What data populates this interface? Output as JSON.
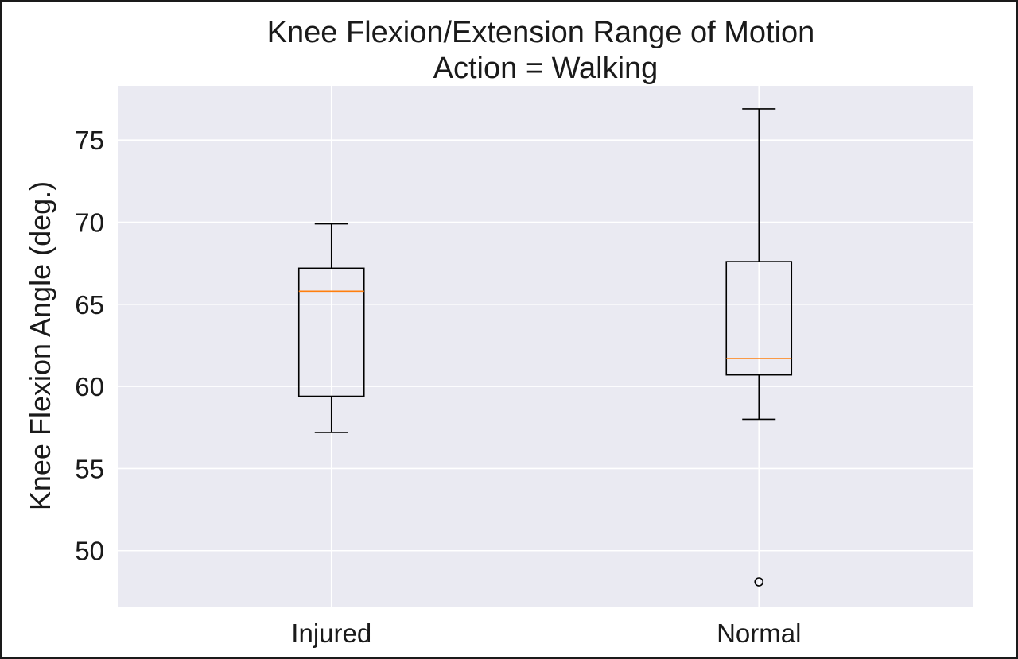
{
  "chart_data": {
    "type": "box",
    "title": "Knee Flexion/Extension Range of Motion",
    "subtitle": "Action = Walking",
    "xlabel": "",
    "ylabel": "Knee Flexion Angle (deg.)",
    "ylim": [
      46.6,
      78.3
    ],
    "yticks": [
      50,
      55,
      60,
      65,
      70,
      75
    ],
    "grid": true,
    "categories": [
      "Injured",
      "Normal"
    ],
    "boxes": [
      {
        "category": "Injured",
        "whisker_low": 57.2,
        "q1": 59.4,
        "median": 65.8,
        "q3": 67.2,
        "whisker_high": 69.9,
        "outliers": []
      },
      {
        "category": "Normal",
        "whisker_low": 58.0,
        "q1": 60.7,
        "median": 61.7,
        "q3": 67.6,
        "whisker_high": 76.9,
        "outliers": [
          48.1
        ]
      }
    ],
    "colors": {
      "plot_background": "#eaeaf2",
      "grid": "#ffffff",
      "box": "#000000",
      "median": "#ff7f0e"
    }
  }
}
